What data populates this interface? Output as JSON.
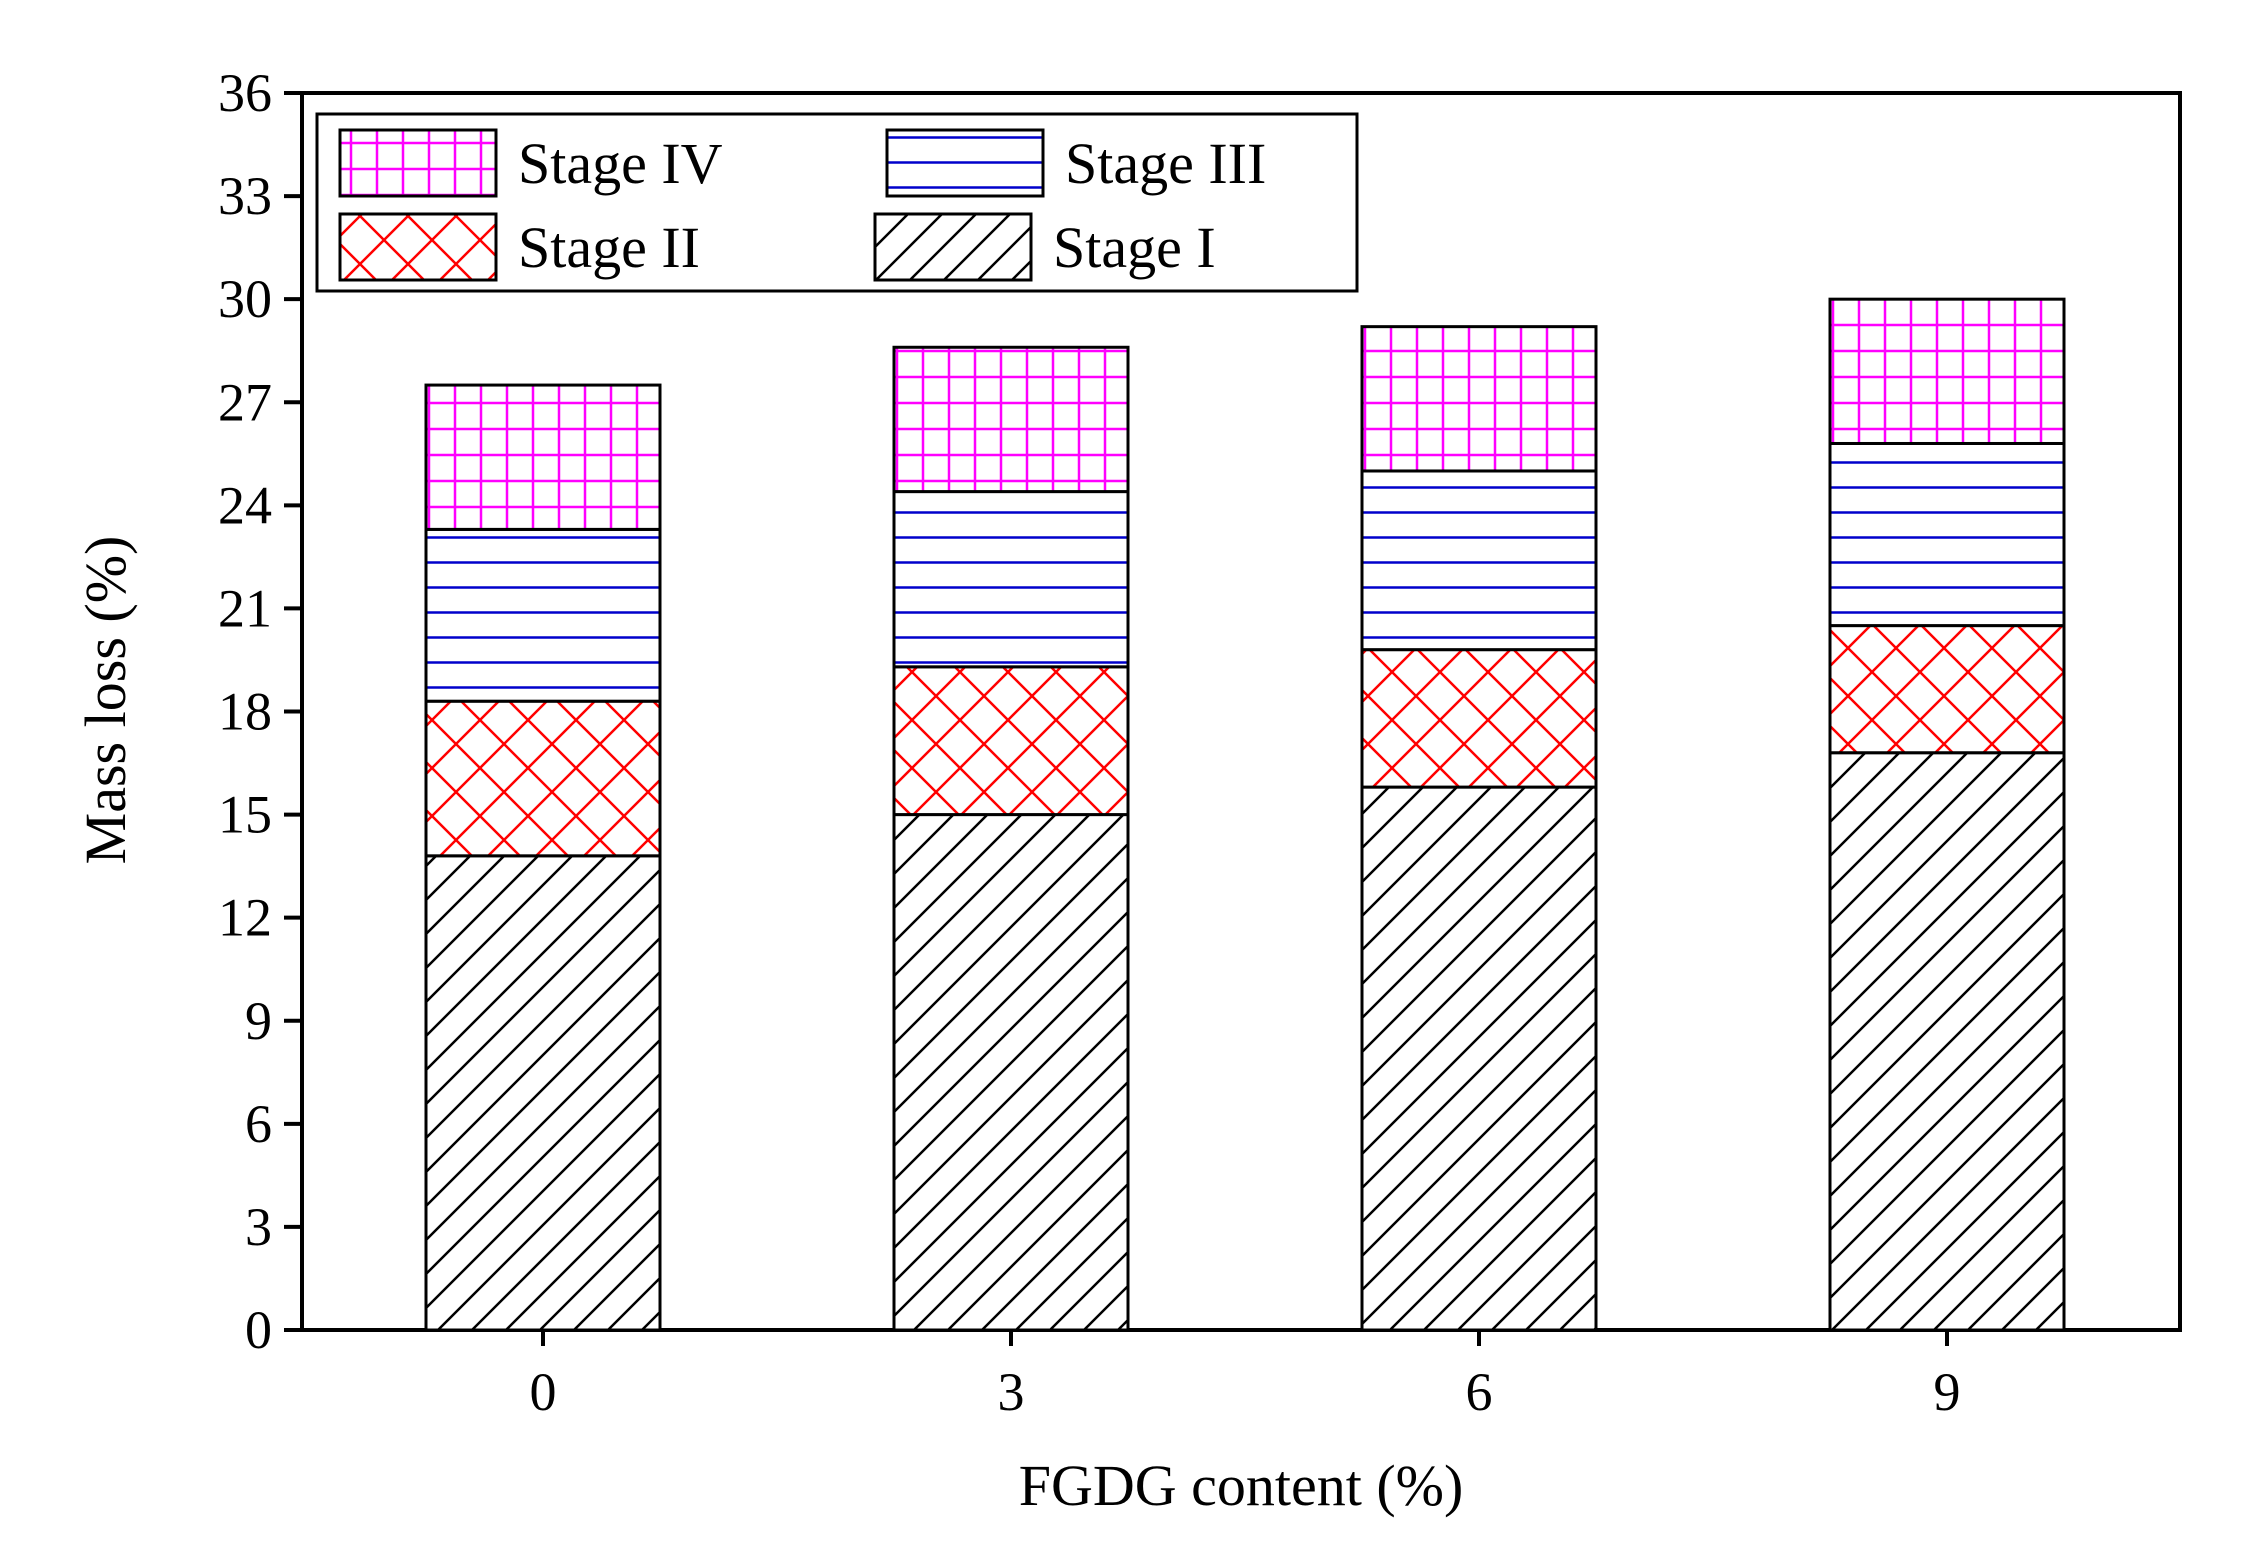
{
  "chart_data": {
    "type": "bar",
    "stacked": true,
    "title": "",
    "xlabel": "FGDG content (%)",
    "ylabel": "Mass loss (%)",
    "categories": [
      "0",
      "3",
      "6",
      "9"
    ],
    "ylim": [
      0,
      36
    ],
    "yticks": [
      "0",
      "3",
      "6",
      "9",
      "12",
      "15",
      "18",
      "21",
      "24",
      "27",
      "30",
      "33",
      "36"
    ],
    "legend_position": "top-left",
    "series": [
      {
        "name": "Stage I",
        "values": [
          13.8,
          15.0,
          15.8,
          16.8
        ],
        "color": "#000000",
        "pattern": "diagonal"
      },
      {
        "name": "Stage II",
        "values": [
          4.5,
          4.3,
          4.0,
          3.7
        ],
        "color": "#ff0000",
        "pattern": "crosshatch"
      },
      {
        "name": "Stage III",
        "values": [
          5.0,
          5.1,
          5.2,
          5.3
        ],
        "color": "#0000cc",
        "pattern": "horizontal"
      },
      {
        "name": "Stage IV",
        "values": [
          4.2,
          4.2,
          4.2,
          4.2
        ],
        "color": "#ff00ff",
        "pattern": "grid"
      }
    ],
    "legend_order": [
      "Stage IV",
      "Stage III",
      "Stage II",
      "Stage I"
    ]
  }
}
